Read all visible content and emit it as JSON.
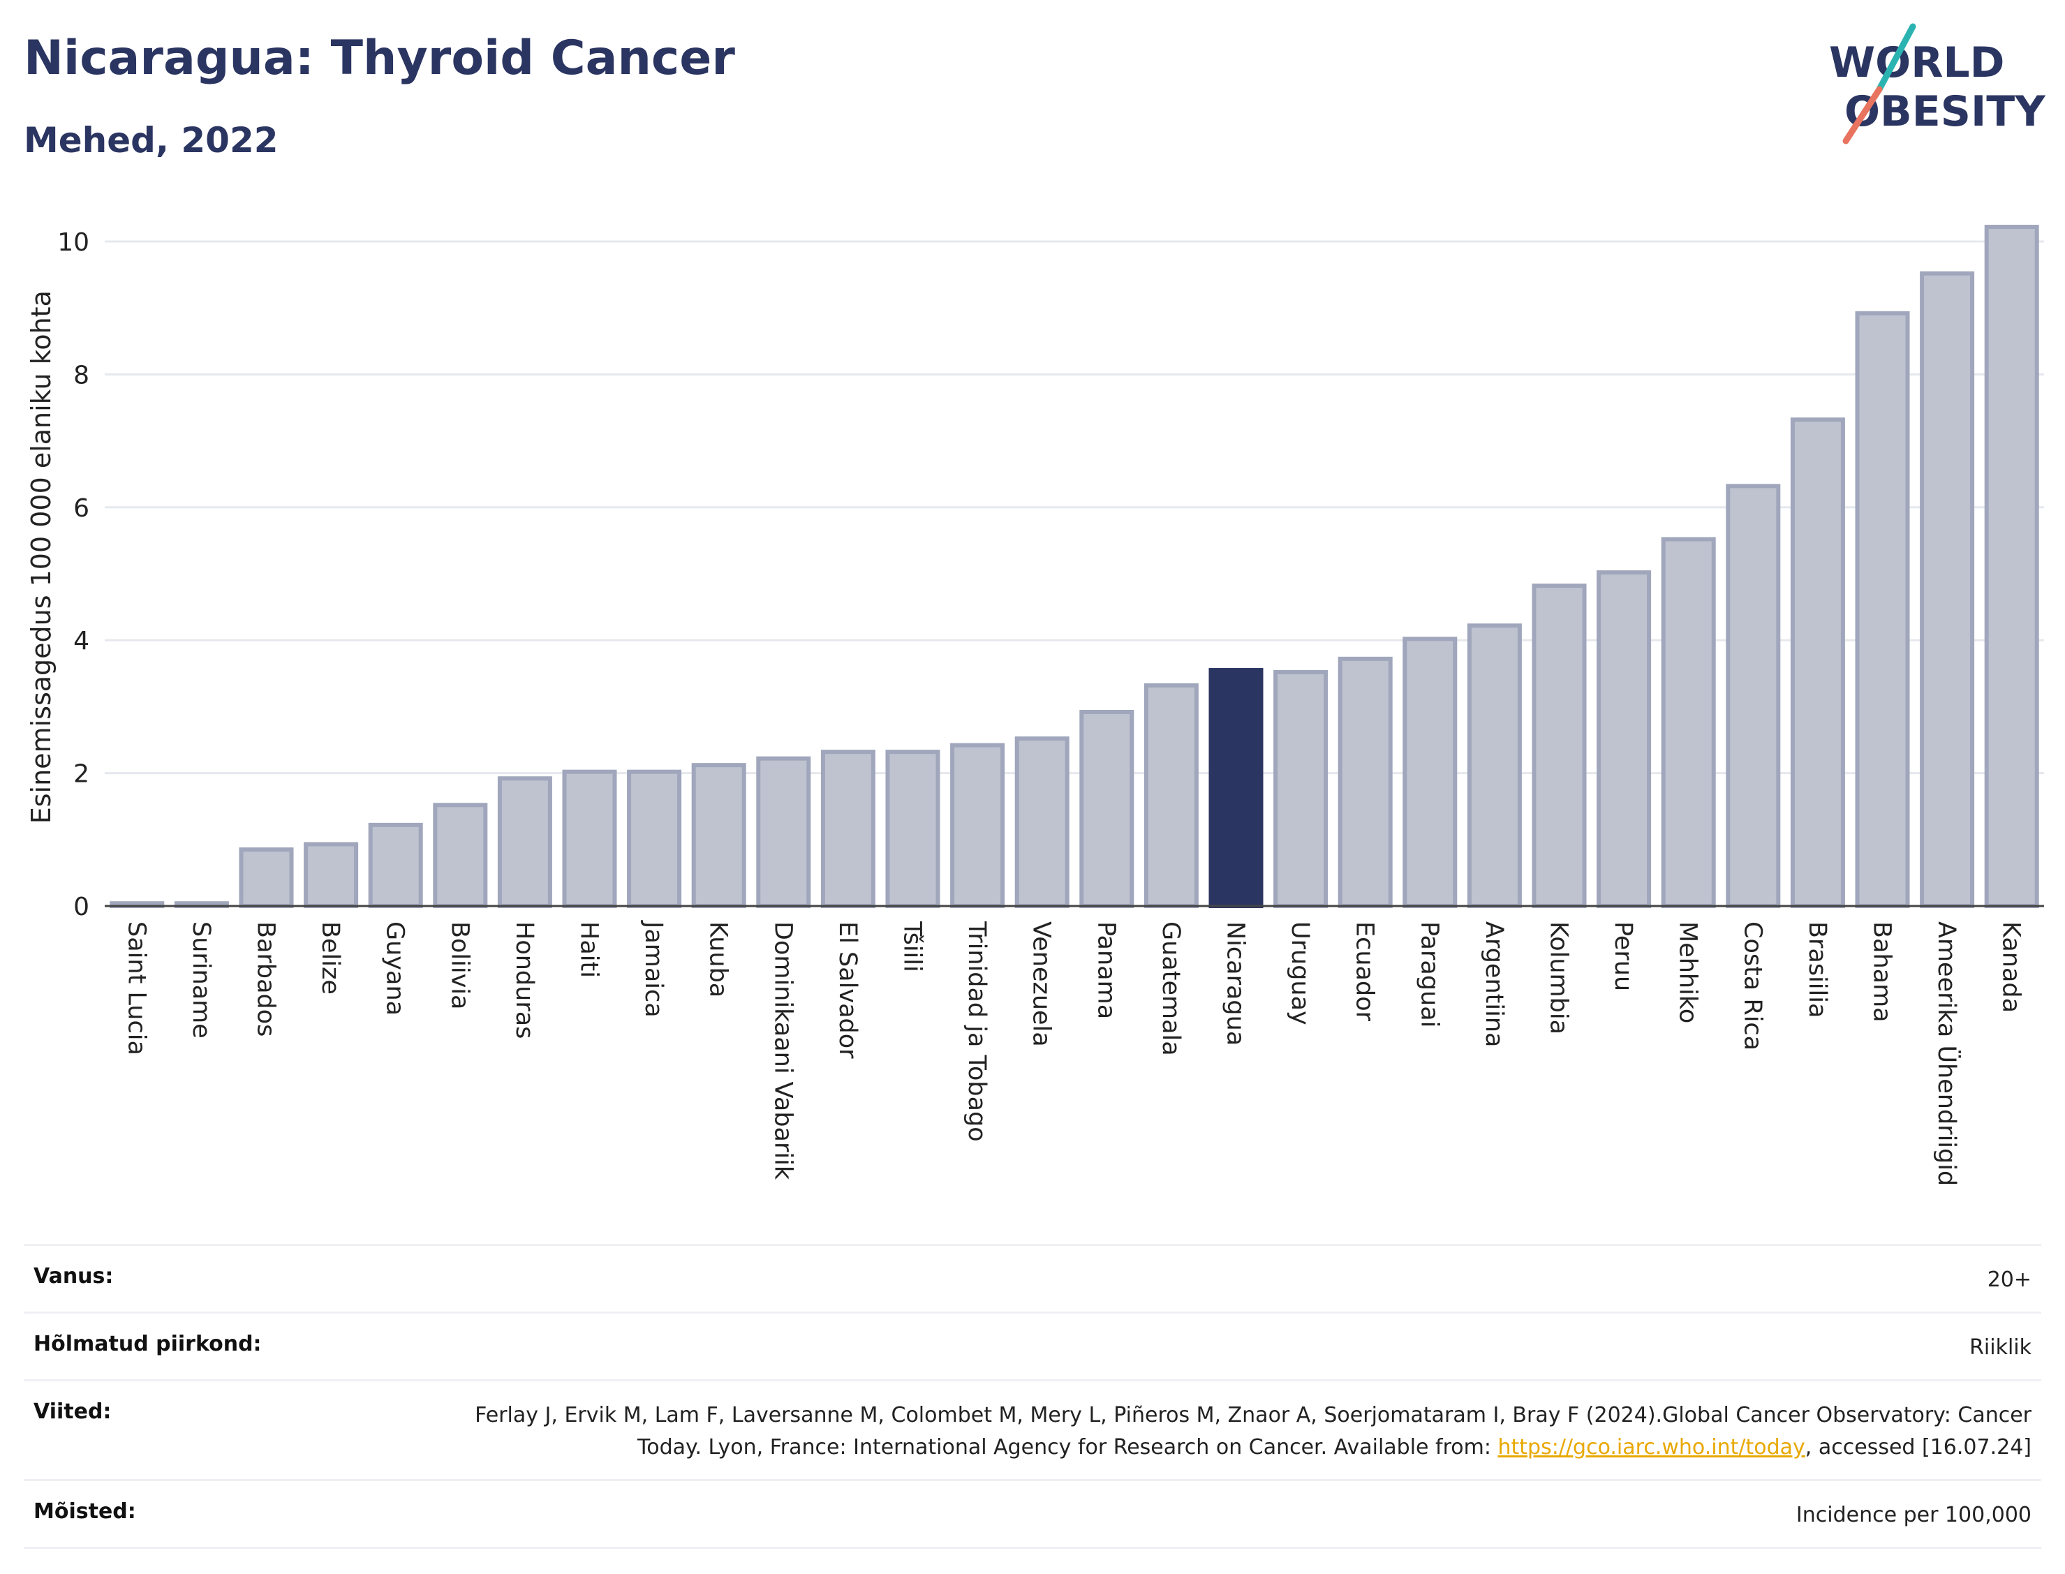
{
  "header": {
    "title": "Nicaragua: Thyroid Cancer",
    "subtitle": "Mehed, 2022"
  },
  "logo": {
    "line1": "WORLD",
    "line2": "OBESITY"
  },
  "colors": {
    "bar": "#bfc3d0",
    "bar_border": "#a0a6bb",
    "highlight": "#2b3561",
    "title": "#2b3561",
    "grid": "#e6e8ee",
    "link": "#e8a800",
    "logo_teal": "#2bb3b1",
    "logo_coral": "#e8735f"
  },
  "chart_data": {
    "type": "bar",
    "title": "Nicaragua: Thyroid Cancer",
    "subtitle": "Mehed, 2022",
    "ylabel": "Esinemissagedus 100 000 elaniku kohta",
    "xlabel": "",
    "ylim": [
      0,
      10.5
    ],
    "yticks": [
      0,
      2,
      4,
      6,
      8,
      10
    ],
    "grid": true,
    "highlight": "Nicaragua",
    "categories": [
      "Saint Lucia",
      "Suriname",
      "Barbados",
      "Belize",
      "Guyana",
      "Boliivia",
      "Honduras",
      "Haiti",
      "Jamaica",
      "Kuuba",
      "Dominikaani Vabariik",
      "El Salvador",
      "Tšiili",
      "Trinidad ja Tobago",
      "Venezuela",
      "Panama",
      "Guatemala",
      "Nicaragua",
      "Uruguay",
      "Ecuador",
      "Paraguai",
      "Argentiina",
      "Kolumbia",
      "Peruu",
      "Mehhiko",
      "Costa Rica",
      "Brasiilia",
      "Bahama",
      "Ameerika Ühendriigid",
      "Kanada"
    ],
    "values": [
      0.04,
      0.04,
      0.85,
      0.93,
      1.22,
      1.52,
      1.92,
      2.02,
      2.02,
      2.12,
      2.22,
      2.32,
      2.32,
      2.42,
      2.52,
      2.92,
      3.32,
      3.55,
      3.52,
      3.72,
      4.02,
      4.22,
      4.82,
      5.02,
      5.52,
      6.32,
      7.32,
      8.92,
      9.52,
      10.22
    ]
  },
  "meta": [
    {
      "label": "Vanus:",
      "value": "20+"
    },
    {
      "label": "Hõlmatud piirkond:",
      "value": "Riiklik"
    },
    {
      "label": "Viited:",
      "value_pre": "Ferlay J, Ervik M, Lam F, Laversanne M, Colombet M, Mery L, Piñeros M, Znaor A, Soerjomataram I, Bray F (2024).Global Cancer Observatory: Cancer Today. Lyon, France: International Agency for Research on Cancer. Available from: ",
      "link": "https://gco.iarc.who.int/today",
      "value_post": ", accessed [16.07.24]"
    },
    {
      "label": "Mõisted:",
      "value": "Incidence per 100,000"
    }
  ]
}
